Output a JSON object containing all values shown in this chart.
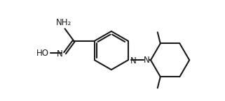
{
  "bg_color": "#ffffff",
  "line_color": "#1a1a1a",
  "line_width": 1.5,
  "font_size": 8.5,
  "fig_width": 3.21,
  "fig_height": 1.45,
  "dpi": 100,
  "xlim": [
    0,
    9.5
  ],
  "ylim": [
    0,
    4.2
  ]
}
